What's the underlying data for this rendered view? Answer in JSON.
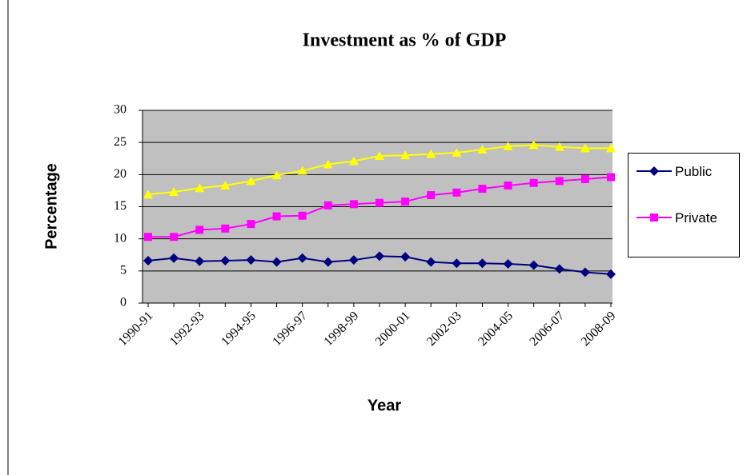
{
  "chart_data": {
    "type": "line",
    "title": "Investment as % of GDP",
    "x_label": "Year",
    "y_label": "Percentage",
    "categories": [
      "1990-91",
      null,
      "1992-93",
      null,
      "1994-95",
      null,
      "1996-97",
      null,
      "1998-99",
      null,
      "2000-01",
      null,
      "2002-03",
      null,
      "2004-05",
      null,
      "2006-07",
      null,
      "2008-09"
    ],
    "series": [
      {
        "name": "Public",
        "color": "#000080",
        "marker": "diamond",
        "values": [
          6.6,
          7.0,
          6.5,
          6.6,
          6.7,
          6.4,
          7.0,
          6.4,
          6.7,
          7.3,
          7.2,
          6.4,
          6.2,
          6.2,
          6.1,
          5.9,
          5.3,
          4.8,
          4.5
        ]
      },
      {
        "name": "Private",
        "color": "#ff00ff",
        "marker": "square",
        "values": [
          10.3,
          10.3,
          11.4,
          11.6,
          12.3,
          13.5,
          13.6,
          15.2,
          15.4,
          15.6,
          15.8,
          16.8,
          17.2,
          17.8,
          18.3,
          18.7,
          19.0,
          19.3,
          19.6
        ]
      },
      {
        "color": "#ffff00",
        "marker": "triangle",
        "values": [
          16.9,
          17.3,
          17.9,
          18.3,
          19.0,
          19.9,
          20.6,
          21.6,
          22.1,
          22.9,
          23.0,
          23.2,
          23.4,
          23.9,
          24.4,
          24.6,
          24.3,
          24.1,
          24.1
        ]
      }
    ],
    "ylim": [
      0,
      30
    ],
    "yticks": [
      0,
      5,
      10,
      15,
      20,
      25,
      30
    ],
    "grid": true,
    "plot_background": "#c0c0c0",
    "legend": "right"
  }
}
